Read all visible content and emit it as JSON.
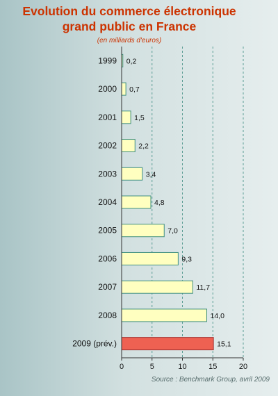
{
  "chart_data": {
    "type": "bar",
    "orientation": "horizontal",
    "title_lines": [
      "Evolution du commerce électronique",
      "grand public en France"
    ],
    "subtitle": "(en milliards d'euros)",
    "categories": [
      "1999",
      "2000",
      "2001",
      "2002",
      "2003",
      "2004",
      "2005",
      "2006",
      "2007",
      "2008",
      "2009 (prév.)"
    ],
    "values": [
      0.2,
      0.7,
      1.5,
      2.2,
      3.4,
      4.8,
      7.0,
      9.3,
      11.7,
      14.0,
      15.1
    ],
    "value_labels": [
      "0,2",
      "0,7",
      "1,5",
      "2,2",
      "3,4",
      "4,8",
      "7,0",
      "9,3",
      "11,7",
      "14,0",
      "15,1"
    ],
    "xlim": [
      0,
      20
    ],
    "xticks": [
      0,
      5,
      10,
      15,
      20
    ],
    "xtick_labels": [
      "0",
      "5",
      "10",
      "15",
      "20"
    ],
    "grid": "vertical dashed",
    "source": "Source : Benchmark Group, avril 2009",
    "colors": {
      "bar_fill": "#ffffc0",
      "bar_stroke": "#3f8f80",
      "highlight_fill": "#ee6152",
      "highlight_stroke": "#a03030",
      "title": "#cc3300",
      "grid": "#5a9d94"
    },
    "highlight_index": 10
  }
}
